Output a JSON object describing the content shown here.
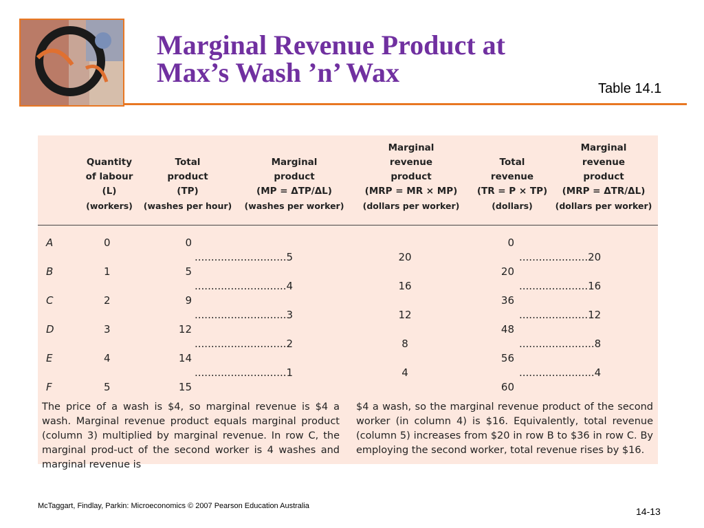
{
  "slide": {
    "title_lines": [
      "Marginal Revenue Product at",
      "Max’s Wash ’n’ Wax"
    ],
    "table_tag": "Table 14.1",
    "footer": "McTaggart, Findlay, Parkin: Microeconomics © 2007 Pearson Education Australia",
    "page_number": "14-13"
  },
  "table": {
    "headers": [
      {
        "lines": [
          "Quantity",
          "of labour",
          "(L)"
        ],
        "unit": "(workers)"
      },
      {
        "lines": [
          "Total",
          "product",
          "(TP)"
        ],
        "unit": "(washes per hour)"
      },
      {
        "lines": [
          "Marginal",
          "product",
          "(MP = ΔTP/ΔL)"
        ],
        "unit": "(washes per worker)"
      },
      {
        "lines": [
          "Marginal",
          "revenue",
          "product",
          "(MRP = MR × MP)"
        ],
        "unit": "(dollars per worker)"
      },
      {
        "lines": [
          "Total",
          "revenue",
          "(TR = P × TP)"
        ],
        "unit": "(dollars)"
      },
      {
        "lines": [
          "Marginal",
          "revenue",
          "product",
          "(MRP = ΔTR/ΔL)"
        ],
        "unit": "(dollars per worker)"
      }
    ],
    "rows": [
      {
        "label": "A",
        "labour": "0",
        "tp": "0",
        "tr": "0"
      },
      {
        "label": "B",
        "labour": "1",
        "tp": "5",
        "tr": "20"
      },
      {
        "label": "C",
        "labour": "2",
        "tp": "9",
        "tr": "36"
      },
      {
        "label": "D",
        "labour": "3",
        "tp": "12",
        "tr": "48"
      },
      {
        "label": "E",
        "labour": "4",
        "tp": "14",
        "tr": "56"
      },
      {
        "label": "F",
        "labour": "5",
        "tp": "15",
        "tr": "60"
      }
    ],
    "between": [
      {
        "mp": "............................5",
        "mrp": "20",
        "mrp2": ".....................20"
      },
      {
        "mp": "............................4",
        "mrp": "16",
        "mrp2": ".....................16"
      },
      {
        "mp": "............................3",
        "mrp": "12",
        "mrp2": ".....................12"
      },
      {
        "mp": "............................2",
        "mrp": "8",
        "mrp2": ".......................8"
      },
      {
        "mp": "............................1",
        "mrp": "4",
        "mrp2": ".......................4"
      }
    ],
    "note_left": "The price of a wash is $4, so marginal revenue is $4 a wash. Marginal revenue product equals marginal product (column 3) multiplied by marginal revenue. In row C, the marginal prod-uct of the second worker is 4 washes and marginal revenue is",
    "note_right": "$4 a wash, so the marginal revenue product of the second worker (in column 4) is $16. Equivalently, total revenue (column 5) increases from $20 in row B to $36 in row C. By employing the second worker, total revenue rises by $16."
  }
}
